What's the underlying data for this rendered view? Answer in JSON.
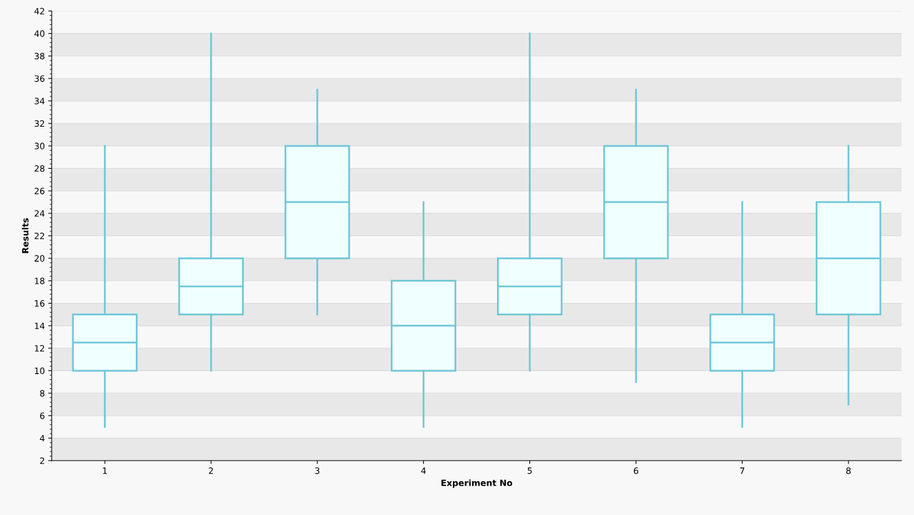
{
  "chart_data": {
    "type": "box",
    "xlabel": "Experiment No",
    "ylabel": "Results",
    "categories": [
      "1",
      "2",
      "3",
      "4",
      "5",
      "6",
      "7",
      "8"
    ],
    "series": [
      {
        "color": "#6ec6d6",
        "boxes": [
          {
            "low": 5,
            "q1": 10,
            "median": 12.5,
            "q3": 15,
            "high": 30
          },
          {
            "low": 10,
            "q1": 15,
            "median": 17.5,
            "q3": 20,
            "high": 40
          },
          {
            "low": 15,
            "q1": 20,
            "median": 25,
            "q3": 30,
            "high": 35
          },
          {
            "low": 5,
            "q1": 10,
            "median": 14,
            "q3": 18,
            "high": 25
          },
          {
            "low": 10,
            "q1": 15,
            "median": 17.5,
            "q3": 20,
            "high": 40
          },
          {
            "low": 9,
            "q1": 20,
            "median": 25,
            "q3": 30,
            "high": 35
          },
          {
            "low": 5,
            "q1": 10,
            "median": 12.5,
            "q3": 15,
            "high": 25
          },
          {
            "low": 7,
            "q1": 15,
            "median": 20,
            "q3": 25,
            "high": 30
          }
        ]
      }
    ],
    "ylim": [
      2,
      42
    ],
    "yticks": [
      2,
      4,
      6,
      8,
      10,
      12,
      14,
      16,
      18,
      20,
      22,
      24,
      26,
      28,
      30,
      32,
      34,
      36,
      38,
      40,
      42
    ],
    "grid": "y"
  }
}
